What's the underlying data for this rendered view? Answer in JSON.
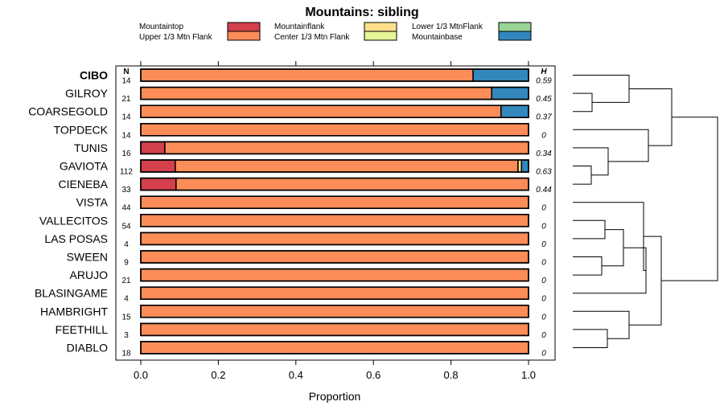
{
  "chart_data": {
    "type": "bar",
    "stacked": true,
    "orientation": "horizontal",
    "title": "Mountains: sibling",
    "xlabel": "Proportion",
    "xlim": [
      0,
      1
    ],
    "x_ticks": [
      0,
      0.2,
      0.4,
      0.6,
      0.8,
      1
    ],
    "x_tick_labels": [
      "0.0",
      "0.2",
      "0.4",
      "0.6",
      "0.8",
      "1.0"
    ],
    "n_header": "N",
    "h_header": "H",
    "legend": [
      {
        "name": "Mountaintop",
        "color": "#d33f4b"
      },
      {
        "name": "Upper 1/3 Mtn Flank",
        "color": "#fc8d59"
      },
      {
        "name": "Mountainflank",
        "color": "#fee08b"
      },
      {
        "name": "Center 1/3 Mtn Flank",
        "color": "#e6f598"
      },
      {
        "name": "Lower 1/3 MtnFlank",
        "color": "#99d594"
      },
      {
        "name": "Mountainbase",
        "color": "#3288bd"
      }
    ],
    "categories": [
      "CIBO",
      "GILROY",
      "COARSEGOLD",
      "TOPDECK",
      "TUNIS",
      "GAVIOTA",
      "CIENEBA",
      "VISTA",
      "VALLECITOS",
      "LAS POSAS",
      "SWEEN",
      "ARUJO",
      "BLASINGAME",
      "HAMBRIGHT",
      "FEETHILL",
      "DIABLO"
    ],
    "bold_category": "CIBO",
    "n_values": [
      "14",
      "21",
      "14",
      "14",
      "16",
      "112",
      "33",
      "44",
      "54",
      "4",
      "9",
      "21",
      "4",
      "15",
      "3",
      "18"
    ],
    "h_values": [
      "0.59",
      "0.45",
      "0.37",
      "0",
      "0.34",
      "0.63",
      "0.44",
      "0",
      "0",
      "0",
      "0",
      "0",
      "0",
      "0",
      "0",
      "0"
    ],
    "series": [
      {
        "name": "Mountaintop",
        "values": [
          0,
          0,
          0,
          0,
          0.062,
          0.089,
          0.091,
          0,
          0,
          0,
          0,
          0,
          0,
          0,
          0,
          0
        ]
      },
      {
        "name": "Upper 1/3 Mtn Flank",
        "values": [
          0.857,
          0.905,
          0.929,
          1,
          0.938,
          0.884,
          0.909,
          1,
          1,
          1,
          1,
          1,
          1,
          1,
          1,
          1
        ]
      },
      {
        "name": "Mountainflank",
        "values": [
          0,
          0,
          0,
          0,
          0,
          0.009,
          0,
          0,
          0,
          0,
          0,
          0,
          0,
          0,
          0,
          0
        ]
      },
      {
        "name": "Center 1/3 Mtn Flank",
        "values": [
          0,
          0,
          0,
          0,
          0,
          0,
          0,
          0,
          0,
          0,
          0,
          0,
          0,
          0,
          0,
          0
        ]
      },
      {
        "name": "Lower 1/3 MtnFlank",
        "values": [
          0,
          0,
          0,
          0,
          0,
          0,
          0,
          0,
          0,
          0,
          0,
          0,
          0,
          0,
          0,
          0
        ]
      },
      {
        "name": "Mountainbase",
        "values": [
          0.143,
          0.095,
          0.071,
          0,
          0,
          0.018,
          0,
          0,
          0,
          0,
          0,
          0,
          0,
          0,
          0,
          0
        ]
      }
    ],
    "dendrogram": "hierarchical clustering of the categories"
  }
}
